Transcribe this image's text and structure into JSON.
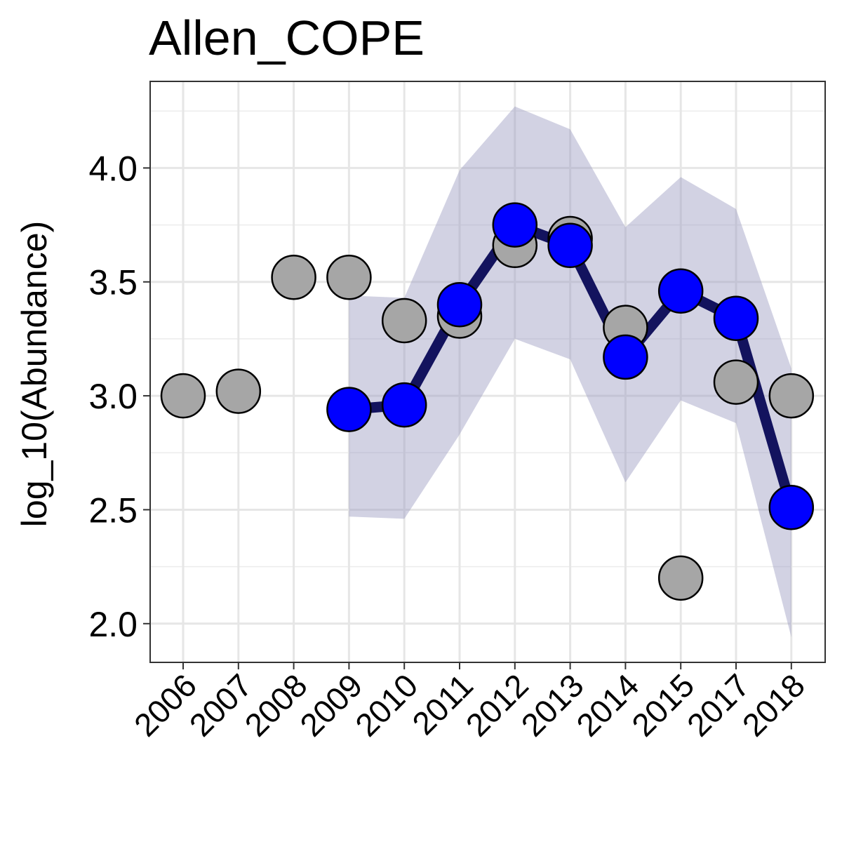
{
  "chart_data": {
    "type": "line",
    "title": "Allen_COPE",
    "xlabel": "",
    "ylabel": "log_10(Abundance)",
    "categories": [
      "2006",
      "2007",
      "2008",
      "2009",
      "2010",
      "2011",
      "2012",
      "2013",
      "2014",
      "2015",
      "2017",
      "2018"
    ],
    "ylim": [
      1.83,
      4.38
    ],
    "yticks": [
      2.0,
      2.5,
      3.0,
      3.5,
      4.0
    ],
    "ytick_labels": [
      "2.0",
      "2.5",
      "3.0",
      "3.5",
      "4.0"
    ],
    "grid": true,
    "observed": [
      3.0,
      3.02,
      3.52,
      3.52,
      3.33,
      3.35,
      3.66,
      3.69,
      3.3,
      2.2,
      3.06,
      3.0
    ],
    "estimate": [
      null,
      null,
      null,
      2.94,
      2.96,
      3.4,
      3.75,
      3.66,
      3.17,
      3.46,
      3.34,
      2.51
    ],
    "lower": [
      null,
      null,
      null,
      2.47,
      2.46,
      2.83,
      3.25,
      3.16,
      2.62,
      2.98,
      2.88,
      1.94
    ],
    "upper": [
      null,
      null,
      null,
      3.44,
      3.43,
      3.99,
      4.27,
      4.17,
      3.74,
      3.96,
      3.82,
      3.12
    ],
    "colors": {
      "observed_fill": "#a6a6a6",
      "estimate_fill": "#0000ff",
      "line": "#13135e",
      "ribbon": "#9b9bc2",
      "marker_stroke": "#000000"
    }
  }
}
